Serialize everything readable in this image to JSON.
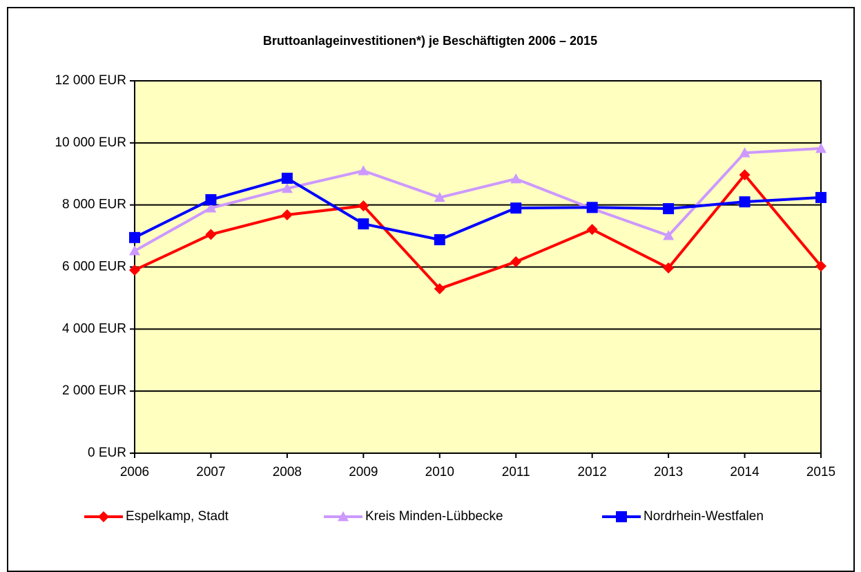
{
  "chart_data": {
    "type": "line",
    "title": "Bruttoanlageinvestitionen*) je Beschäftigten 2006 – 2015",
    "x": [
      2006,
      2007,
      2008,
      2009,
      2010,
      2011,
      2012,
      2013,
      2014,
      2015
    ],
    "xlim": [
      2006,
      2015
    ],
    "xticks": [
      2006,
      2007,
      2008,
      2009,
      2010,
      2011,
      2012,
      2013,
      2014,
      2015
    ],
    "ylim": [
      0,
      12000
    ],
    "yticks": [
      {
        "value": 0,
        "label": "0 EUR"
      },
      {
        "value": 2000,
        "label": "2 000 EUR"
      },
      {
        "value": 4000,
        "label": "4 000 EUR"
      },
      {
        "value": 6000,
        "label": "6 000 EUR"
      },
      {
        "value": 8000,
        "label": "8 000 EUR"
      },
      {
        "value": 10000,
        "label": "10 000 EUR"
      },
      {
        "value": 12000,
        "label": "12 000 EUR"
      }
    ],
    "grid": true,
    "legend": "bottom",
    "series": [
      {
        "name": "Espelkamp, Stadt",
        "color": "#ff0000",
        "marker": "diamond",
        "values": [
          5900,
          7050,
          7680,
          7970,
          5300,
          6170,
          7210,
          5970,
          8970,
          6030
        ]
      },
      {
        "name": "Kreis Minden-Lübbecke",
        "color": "#cc99ff",
        "marker": "triangle",
        "values": [
          6520,
          7900,
          8530,
          9100,
          8240,
          8840,
          7880,
          7010,
          9680,
          9820
        ]
      },
      {
        "name": "Nordrhein-Westfalen",
        "color": "#0000ff",
        "marker": "square",
        "values": [
          6950,
          8170,
          8860,
          7390,
          6880,
          7900,
          7920,
          7880,
          8100,
          8240
        ]
      }
    ]
  }
}
